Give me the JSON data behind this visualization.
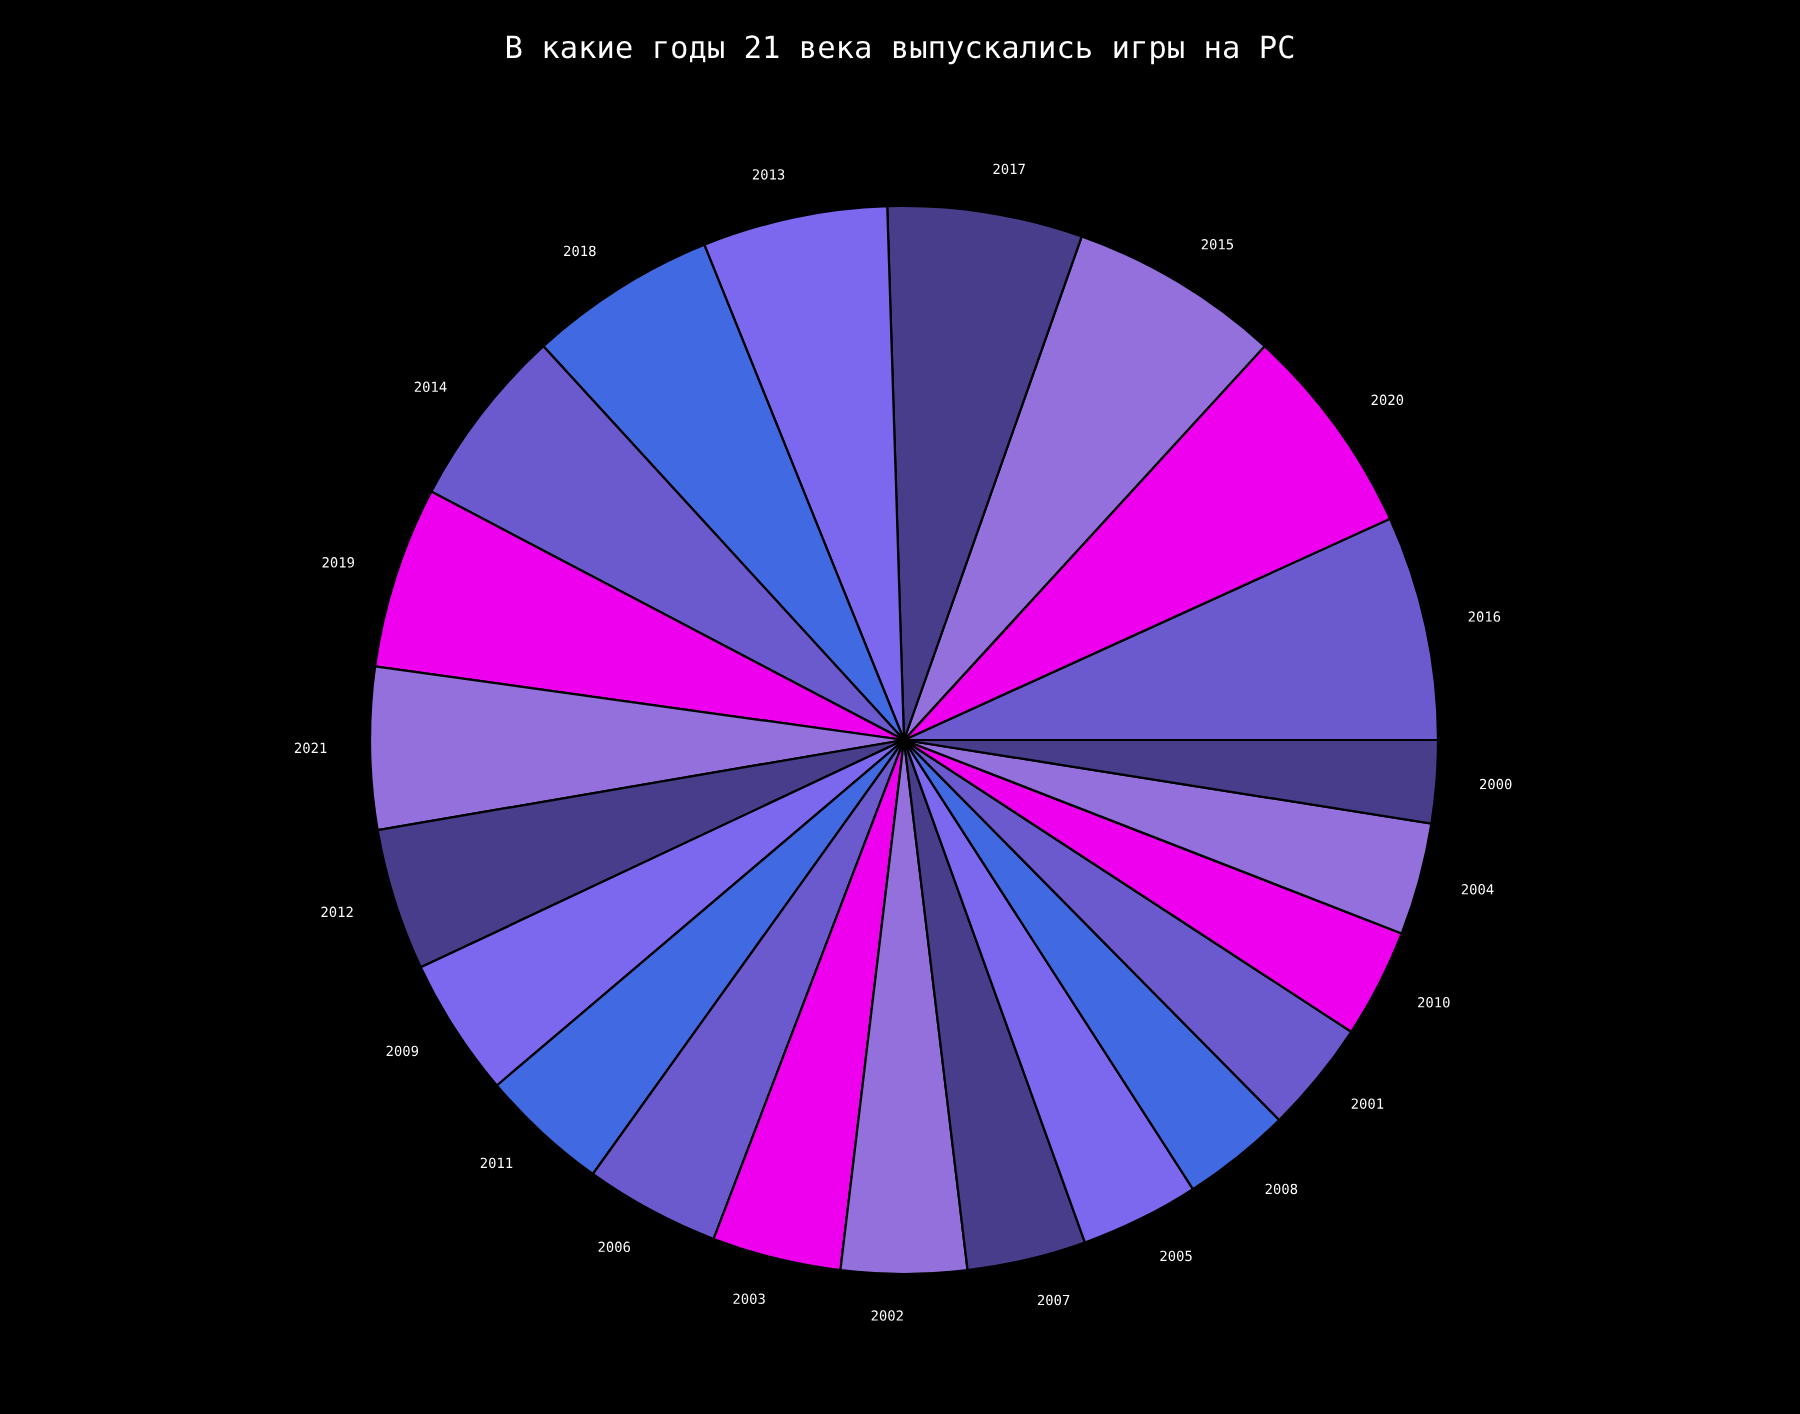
{
  "chart_data": {
    "type": "pie",
    "title": "В какие годы 21 века выпускались игры на PC",
    "categories": [
      "2016",
      "2020",
      "2015",
      "2017",
      "2013",
      "2018",
      "2014",
      "2019",
      "2021",
      "2012",
      "2009",
      "2011",
      "2006",
      "2003",
      "2002",
      "2007",
      "2005",
      "2008",
      "2001",
      "2010",
      "2004",
      "2000"
    ],
    "values": [
      6.8,
      6.4,
      6.4,
      5.9,
      5.6,
      5.7,
      5.5,
      5.5,
      4.9,
      4.3,
      4.2,
      3.9,
      4.1,
      3.9,
      3.8,
      3.6,
      3.6,
      3.3,
      3.4,
      3.3,
      3.4,
      2.5
    ],
    "colors": [
      "#6a5acd",
      "#ee00ee",
      "#9370db",
      "#483d8b",
      "#7b68ee",
      "#4169e1",
      "#6a5acd",
      "#ee00ee",
      "#9370db",
      "#483d8b",
      "#7b68ee",
      "#4169e1",
      "#6a5acd",
      "#ee00ee",
      "#9370db",
      "#483d8b",
      "#7b68ee",
      "#4169e1",
      "#6a5acd",
      "#ee00ee",
      "#9370db",
      "#483d8b"
    ],
    "legend": false
  }
}
